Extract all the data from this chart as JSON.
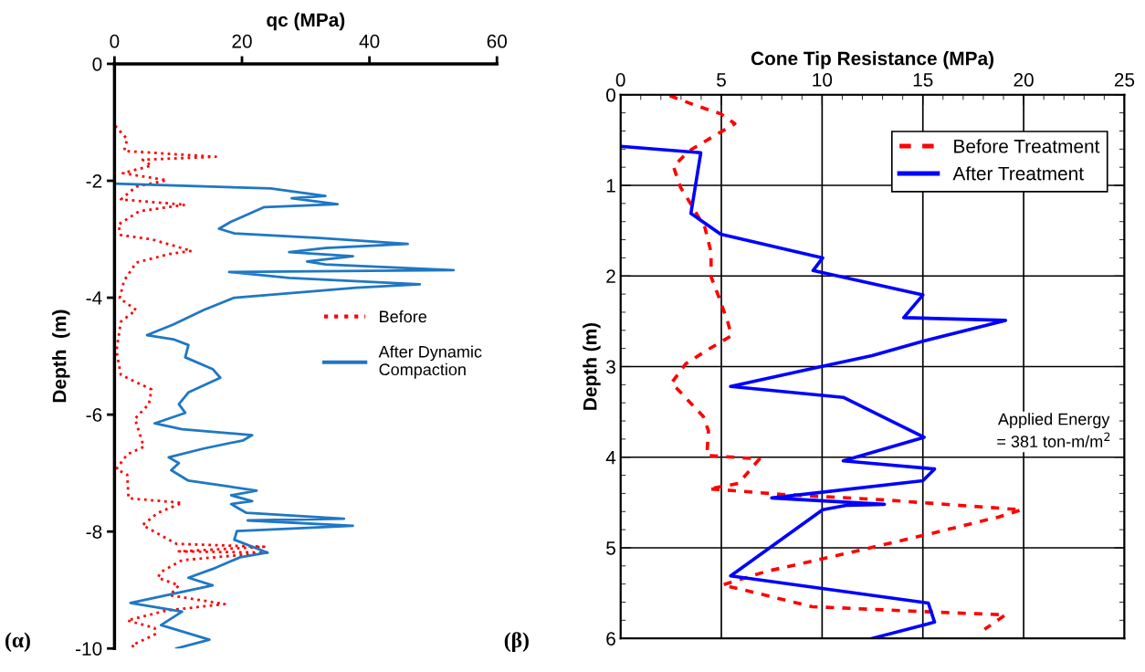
{
  "chart_data": [
    {
      "type": "line",
      "xlabel": "qc (MPa)",
      "ylabel": "Depth  (m)",
      "xlim": [
        0,
        60
      ],
      "xticks": [
        0,
        20,
        40,
        60
      ],
      "ylim": [
        -10,
        0
      ],
      "yticks": [
        0,
        -2,
        -4,
        -6,
        -8,
        -10
      ],
      "grid": false,
      "legend": "right",
      "marker": "none",
      "annotations": [
        "(α)"
      ],
      "series": [
        {
          "name": "Before",
          "color": "#ff0000",
          "line_style": "dotted",
          "x": [
            0.1,
            2.0,
            1.5,
            15.9,
            4.4,
            5.8,
            1.3,
            8.2,
            3.4,
            1.0,
            11.1,
            3.9,
            0.6,
            1.0,
            5.8,
            12.1,
            8.7,
            3.4,
            1.5,
            0.8,
            3.4,
            1.0,
            0.3,
            1.0,
            5.8,
            5.4,
            3.2,
            4.6,
            2.0,
            0.3,
            2.0,
            2.2,
            10.6,
            6.8,
            4.4,
            9.7,
            23.5,
            10.1,
            24.0,
            10.6,
            7.3,
            6.8,
            10.1,
            8.7,
            17.3,
            8.2,
            2.0,
            6.3,
            6.5,
            2.7,
            3.2
          ],
          "values": [
            -1.06,
            -1.29,
            -1.49,
            -1.59,
            -1.64,
            -1.74,
            -1.87,
            -1.99,
            -2.1,
            -2.32,
            -2.41,
            -2.52,
            -2.75,
            -2.93,
            -3.0,
            -3.2,
            -3.25,
            -3.4,
            -3.71,
            -4.01,
            -4.21,
            -4.41,
            -4.91,
            -5.32,
            -5.57,
            -5.82,
            -6.07,
            -6.55,
            -6.68,
            -6.93,
            -7.03,
            -7.43,
            -7.51,
            -7.68,
            -7.89,
            -8.21,
            -8.26,
            -8.34,
            -8.36,
            -8.49,
            -8.69,
            -8.79,
            -8.92,
            -9.09,
            -9.24,
            -9.35,
            -9.52,
            -9.65,
            -9.75,
            -9.95,
            -9.98
          ]
        },
        {
          "name": "After Dynamic\nCompaction",
          "color": "#1f77c4",
          "line_style": "solid",
          "x": [
            0.1,
            24.5,
            33.1,
            27.8,
            35.0,
            23.5,
            18.3,
            16.4,
            18.8,
            32.1,
            46.0,
            33.1,
            27.4,
            37.4,
            30.2,
            33.1,
            53.2,
            18.0,
            27.4,
            47.9,
            37.9,
            18.8,
            14.0,
            9.2,
            5.1,
            9.2,
            11.6,
            11.1,
            15.4,
            16.6,
            11.6,
            10.1,
            11.1,
            6.3,
            10.6,
            21.6,
            20.2,
            14.0,
            8.5,
            10.1,
            8.9,
            11.6,
            17.3,
            22.3,
            18.3,
            21.6,
            18.3,
            20.7,
            36.0,
            20.9,
            37.4,
            19.2,
            18.8,
            24.0,
            19.7,
            15.4,
            11.6,
            15.4,
            8.2,
            2.5,
            10.6,
            7.3,
            14.9,
            9.7
          ],
          "values": [
            -2.05,
            -2.13,
            -2.26,
            -2.3,
            -2.4,
            -2.45,
            -2.7,
            -2.82,
            -2.9,
            -2.98,
            -3.08,
            -3.15,
            -3.22,
            -3.29,
            -3.38,
            -3.43,
            -3.53,
            -3.56,
            -3.66,
            -3.77,
            -3.83,
            -4.0,
            -4.21,
            -4.46,
            -4.64,
            -4.71,
            -4.81,
            -5.02,
            -5.22,
            -5.37,
            -5.62,
            -5.82,
            -5.97,
            -6.15,
            -6.25,
            -6.35,
            -6.44,
            -6.58,
            -6.73,
            -6.83,
            -6.95,
            -7.13,
            -7.22,
            -7.3,
            -7.38,
            -7.48,
            -7.53,
            -7.68,
            -7.78,
            -7.81,
            -7.9,
            -7.99,
            -8.14,
            -8.36,
            -8.44,
            -8.64,
            -8.79,
            -8.92,
            -9.09,
            -9.22,
            -9.37,
            -9.6,
            -9.85,
            -10.0
          ]
        }
      ]
    },
    {
      "type": "line",
      "xlabel": "Cone Tip Resistance (MPa)",
      "ylabel": "Depth (m)",
      "xlim": [
        0,
        25
      ],
      "xticks": [
        0,
        5,
        10,
        15,
        20,
        25
      ],
      "ylim": [
        6,
        0
      ],
      "yticks": [
        0,
        1,
        2,
        3,
        4,
        5,
        6
      ],
      "grid": true,
      "legend": "top right",
      "marker": "none",
      "annotations": [
        "Applied Energy\n= 381 ton-m/m$^{2}$",
        "(β)"
      ],
      "series": [
        {
          "name": "Before Treatment",
          "color": "#ff0000",
          "line_style": "dashed",
          "x": [
            2.44,
            3.75,
            4.97,
            5.67,
            4.45,
            3.4,
            2.62,
            2.97,
            3.58,
            4.19,
            4.49,
            4.49,
            4.89,
            5.32,
            5.5,
            4.28,
            3.23,
            2.53,
            4.1,
            4.36,
            4.28,
            6.89,
            5.85,
            4.36,
            5.67,
            7.94,
            13.0,
            17.36,
            19.9,
            18.76,
            15.27,
            11.43,
            7.24,
            5.06,
            6.2,
            9.51,
            15.62,
            19.1,
            18.06
          ],
          "values": [
            0.01,
            0.12,
            0.21,
            0.32,
            0.48,
            0.62,
            0.79,
            1.02,
            1.24,
            1.47,
            1.74,
            2.01,
            2.24,
            2.51,
            2.66,
            2.82,
            2.97,
            3.18,
            3.55,
            3.71,
            3.98,
            4.02,
            4.29,
            4.35,
            4.37,
            4.41,
            4.47,
            4.54,
            4.58,
            4.66,
            4.85,
            5.05,
            5.26,
            5.41,
            5.47,
            5.65,
            5.71,
            5.74,
            5.9
          ]
        },
        {
          "name": "After Treatment",
          "color": "#0000ff",
          "line_style": "solid",
          "x": [
            0,
            3.98,
            3.49,
            4.97,
            10.03,
            9.55,
            15.0,
            14.05,
            19.1,
            15.0,
            12.48,
            9.95,
            5.46,
            11.05,
            15.06,
            11.05,
            15.58,
            15.0,
            7.5,
            13.09,
            11.26,
            10.03,
            5.46,
            15.27,
            15.58,
            12.48
          ],
          "values": [
            0.57,
            0.64,
            1.31,
            1.54,
            1.8,
            1.94,
            2.21,
            2.46,
            2.49,
            2.72,
            2.88,
            3.0,
            3.22,
            3.34,
            3.78,
            4.04,
            4.13,
            4.26,
            4.45,
            4.52,
            4.53,
            4.58,
            5.31,
            5.61,
            5.82,
            6.0
          ]
        }
      ]
    }
  ]
}
